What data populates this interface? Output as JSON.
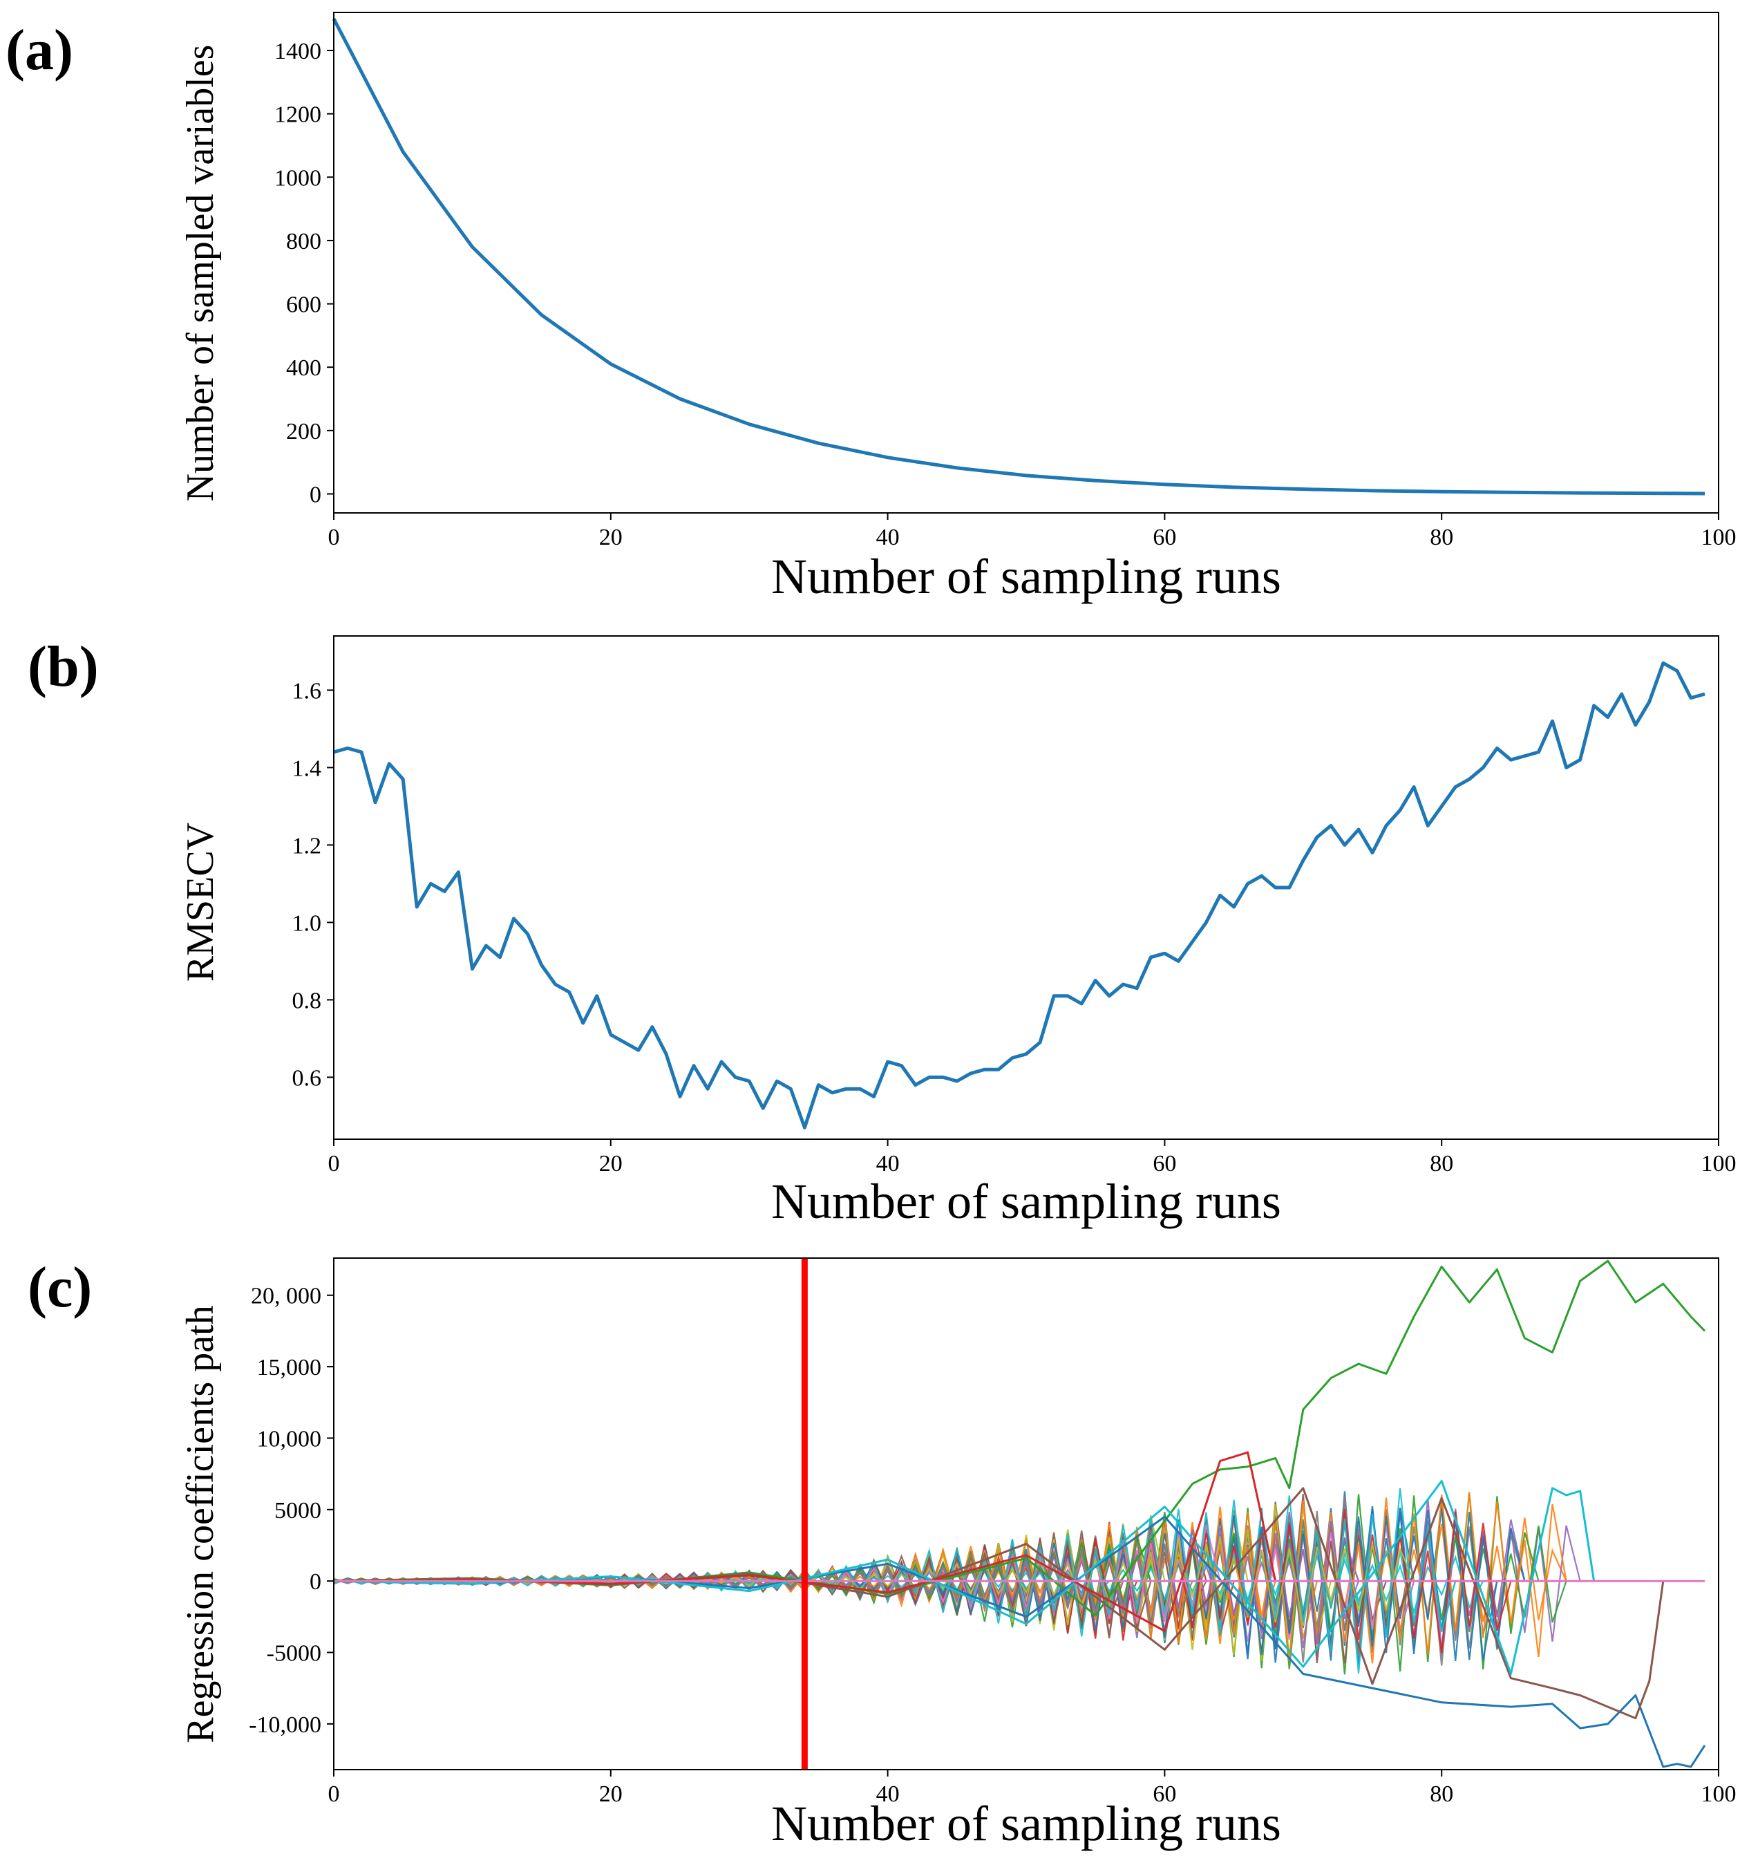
{
  "figure": {
    "panels": [
      {
        "label": "(a)"
      },
      {
        "label": "(b)"
      },
      {
        "label": "(c)"
      }
    ]
  },
  "colors": {
    "primary_line": "#1f77b4",
    "marker_line": "#ff0000",
    "palette": [
      "#1f77b4",
      "#ff7f0e",
      "#2ca02c",
      "#d62728",
      "#9467bd",
      "#8c564b",
      "#e377c2",
      "#7f7f7f",
      "#bcbd22",
      "#17becf"
    ]
  },
  "chart_data": [
    {
      "type": "line",
      "title": "",
      "xlabel": "Number of sampling runs",
      "ylabel": "Number of sampled variables",
      "xlim": [
        0,
        100
      ],
      "ylim": [
        -60,
        1520
      ],
      "xticks": [
        "0",
        "20",
        "40",
        "60",
        "80",
        "100"
      ],
      "xtick_values": [
        0,
        20,
        40,
        60,
        80,
        100
      ],
      "yticks": [
        "0",
        "200",
        "400",
        "600",
        "800",
        "1000",
        "1200",
        "1400"
      ],
      "ytick_values": [
        0,
        200,
        400,
        600,
        800,
        1000,
        1200,
        1400
      ],
      "series": [
        {
          "x": [
            0,
            5,
            10,
            15,
            20,
            25,
            30,
            35,
            40,
            45,
            50,
            55,
            60,
            65,
            70,
            75,
            80,
            85,
            90,
            95,
            99
          ],
          "values": [
            1500,
            1080,
            780,
            565,
            410,
            300,
            220,
            160,
            115,
            82,
            58,
            42,
            30,
            21,
            15,
            10,
            7,
            5,
            3,
            2,
            1
          ]
        }
      ]
    },
    {
      "type": "line",
      "title": "",
      "xlabel": "Number of sampling runs",
      "ylabel": "RMSECV",
      "xlim": [
        0,
        100
      ],
      "ylim": [
        0.44,
        1.74
      ],
      "xticks": [
        "0",
        "20",
        "40",
        "60",
        "80",
        "100"
      ],
      "xtick_values": [
        0,
        20,
        40,
        60,
        80,
        100
      ],
      "yticks": [
        "0.6",
        "0.8",
        "1.0",
        "1.2",
        "1.4",
        "1.6"
      ],
      "ytick_values": [
        0.6,
        0.8,
        1.0,
        1.2,
        1.4,
        1.6
      ],
      "series": [
        {
          "x": [
            0,
            1,
            2,
            3,
            4,
            5,
            6,
            7,
            8,
            9,
            10,
            11,
            12,
            13,
            14,
            15,
            16,
            17,
            18,
            19,
            20,
            21,
            22,
            23,
            24,
            25,
            26,
            27,
            28,
            29,
            30,
            31,
            32,
            33,
            34,
            35,
            36,
            37,
            38,
            39,
            40,
            41,
            42,
            43,
            44,
            45,
            46,
            47,
            48,
            49,
            50,
            51,
            52,
            53,
            54,
            55,
            56,
            57,
            58,
            59,
            60,
            61,
            62,
            63,
            64,
            65,
            66,
            67,
            68,
            69,
            70,
            71,
            72,
            73,
            74,
            75,
            76,
            77,
            78,
            79,
            80,
            81,
            82,
            83,
            84,
            85,
            86,
            87,
            88,
            89,
            90,
            91,
            92,
            93,
            94,
            95,
            96,
            97,
            98,
            99
          ],
          "values": [
            1.44,
            1.45,
            1.44,
            1.31,
            1.41,
            1.37,
            1.04,
            1.1,
            1.08,
            1.13,
            0.88,
            0.94,
            0.91,
            1.01,
            0.97,
            0.89,
            0.84,
            0.82,
            0.74,
            0.81,
            0.71,
            0.69,
            0.67,
            0.73,
            0.66,
            0.55,
            0.63,
            0.57,
            0.64,
            0.6,
            0.59,
            0.52,
            0.59,
            0.57,
            0.47,
            0.58,
            0.56,
            0.57,
            0.57,
            0.55,
            0.64,
            0.63,
            0.58,
            0.6,
            0.6,
            0.59,
            0.61,
            0.62,
            0.62,
            0.65,
            0.66,
            0.69,
            0.81,
            0.81,
            0.79,
            0.85,
            0.81,
            0.84,
            0.83,
            0.91,
            0.92,
            0.9,
            0.95,
            1.0,
            1.07,
            1.04,
            1.1,
            1.12,
            1.09,
            1.09,
            1.16,
            1.22,
            1.25,
            1.2,
            1.24,
            1.18,
            1.25,
            1.29,
            1.35,
            1.25,
            1.3,
            1.35,
            1.37,
            1.4,
            1.45,
            1.42,
            1.43,
            1.44,
            1.52,
            1.4,
            1.42,
            1.56,
            1.53,
            1.59,
            1.51,
            1.57,
            1.67,
            1.65,
            1.58,
            1.59
          ]
        }
      ]
    },
    {
      "type": "line",
      "title": "",
      "xlabel": "Number of sampling runs",
      "ylabel": "Regression coefficients path",
      "xlim": [
        0,
        100
      ],
      "ylim": [
        -13200,
        22600
      ],
      "xticks": [
        "0",
        "20",
        "40",
        "60",
        "80",
        "100"
      ],
      "xtick_values": [
        0,
        20,
        40,
        60,
        80,
        100
      ],
      "yticks": [
        "-10,000",
        "-5000",
        "0",
        "5000",
        "10,000",
        "15,000",
        "20, 000"
      ],
      "ytick_values": [
        -10000,
        -5000,
        0,
        5000,
        10000,
        15000,
        20000
      ],
      "marker_x": 34,
      "series": [
        {
          "color": "#2ca02c",
          "x": [
            0,
            10,
            20,
            30,
            40,
            50,
            55,
            60,
            62,
            64,
            66,
            68,
            69,
            70,
            72,
            74,
            76,
            78,
            80,
            82,
            84,
            86,
            88,
            90,
            92,
            94,
            96,
            98,
            99
          ],
          "values": [
            0,
            200,
            -300,
            600,
            -900,
            1600,
            -2400,
            4200,
            6800,
            7800,
            8000,
            8600,
            6500,
            12000,
            14200,
            15200,
            14500,
            18500,
            22000,
            19500,
            21800,
            17000,
            16000,
            21000,
            22400,
            19500,
            20800,
            18500,
            17500
          ]
        },
        {
          "color": "#1f77b4",
          "x": [
            0,
            10,
            20,
            30,
            40,
            50,
            60,
            70,
            80,
            85,
            88,
            90,
            92,
            94,
            96,
            97,
            98,
            99
          ],
          "values": [
            0,
            -200,
            300,
            -500,
            1200,
            -2500,
            4500,
            -6500,
            -8500,
            -8800,
            -8600,
            -10300,
            -10000,
            -8000,
            -13000,
            -12800,
            -13000,
            -11500
          ]
        },
        {
          "color": "#8c564b",
          "x": [
            0,
            10,
            20,
            30,
            40,
            50,
            60,
            70,
            75,
            80,
            85,
            88,
            90,
            92,
            94,
            95,
            96
          ],
          "values": [
            0,
            150,
            -250,
            500,
            -1100,
            2600,
            -4800,
            6500,
            -7200,
            5800,
            -6800,
            -7500,
            -8000,
            -8800,
            -9600,
            -7000,
            0
          ]
        },
        {
          "color": "#17becf",
          "x": [
            0,
            10,
            20,
            30,
            40,
            50,
            60,
            70,
            80,
            85,
            88,
            89,
            90,
            91
          ],
          "values": [
            0,
            -180,
            320,
            -700,
            1500,
            -3000,
            5200,
            -6000,
            7000,
            -6500,
            6500,
            6000,
            6300,
            0
          ]
        },
        {
          "color": "#d62728",
          "x": [
            0,
            10,
            20,
            30,
            40,
            50,
            60,
            64,
            66,
            67,
            68
          ],
          "values": [
            0,
            100,
            -200,
            400,
            -800,
            1800,
            -3500,
            8400,
            9000,
            4500,
            0
          ]
        },
        {
          "color": "#e377c2",
          "x": [
            0,
            10,
            20,
            30,
            40,
            50,
            60,
            70,
            80,
            90,
            99
          ],
          "values": [
            0,
            0,
            0,
            0,
            0,
            0,
            0,
            0,
            0,
            0,
            0
          ]
        }
      ]
    }
  ]
}
